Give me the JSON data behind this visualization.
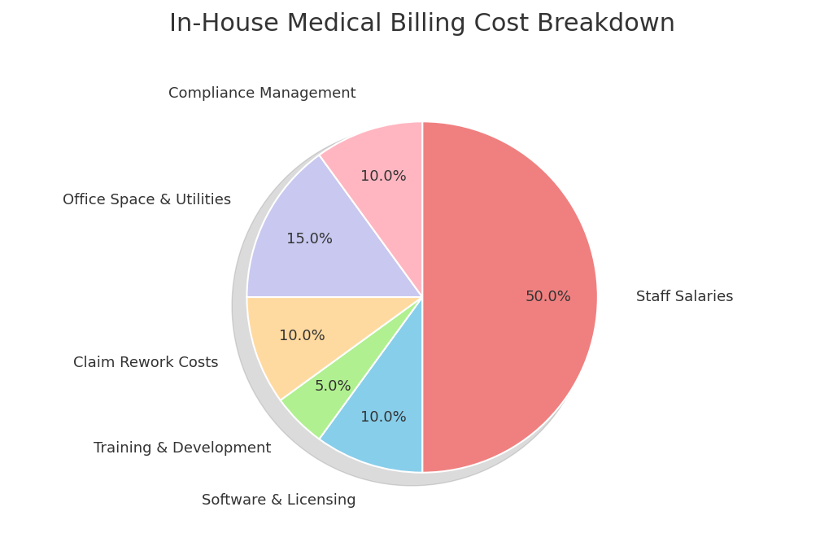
{
  "title": "In-House Medical Billing Cost Breakdown",
  "title_fontsize": 22,
  "slices": [
    {
      "label": "Staff Salaries",
      "value": 50.0,
      "color": "#F08080"
    },
    {
      "label": "Compliance Management",
      "value": 10.0,
      "color": "#FFB6C1"
    },
    {
      "label": "Office Space & Utilities",
      "value": 15.0,
      "color": "#C8C8F0"
    },
    {
      "label": "Claim Rework Costs",
      "value": 10.0,
      "color": "#FFDAA0"
    },
    {
      "label": "Training & Development",
      "value": 5.0,
      "color": "#B0F090"
    },
    {
      "label": "Software & Licensing",
      "value": 10.0,
      "color": "#87CEEB"
    }
  ],
  "startangle": 90,
  "pct_distance": 0.72,
  "label_distance": 1.22,
  "figsize": [
    10.24,
    6.82
  ],
  "dpi": 100,
  "background_color": "#ffffff",
  "label_fontsize": 13,
  "pct_fontsize": 13,
  "wedge_linewidth": 1.5,
  "wedge_edgecolor": "#ffffff",
  "title_color": "#333333",
  "label_color": "#333333",
  "pct_color": "#333333"
}
